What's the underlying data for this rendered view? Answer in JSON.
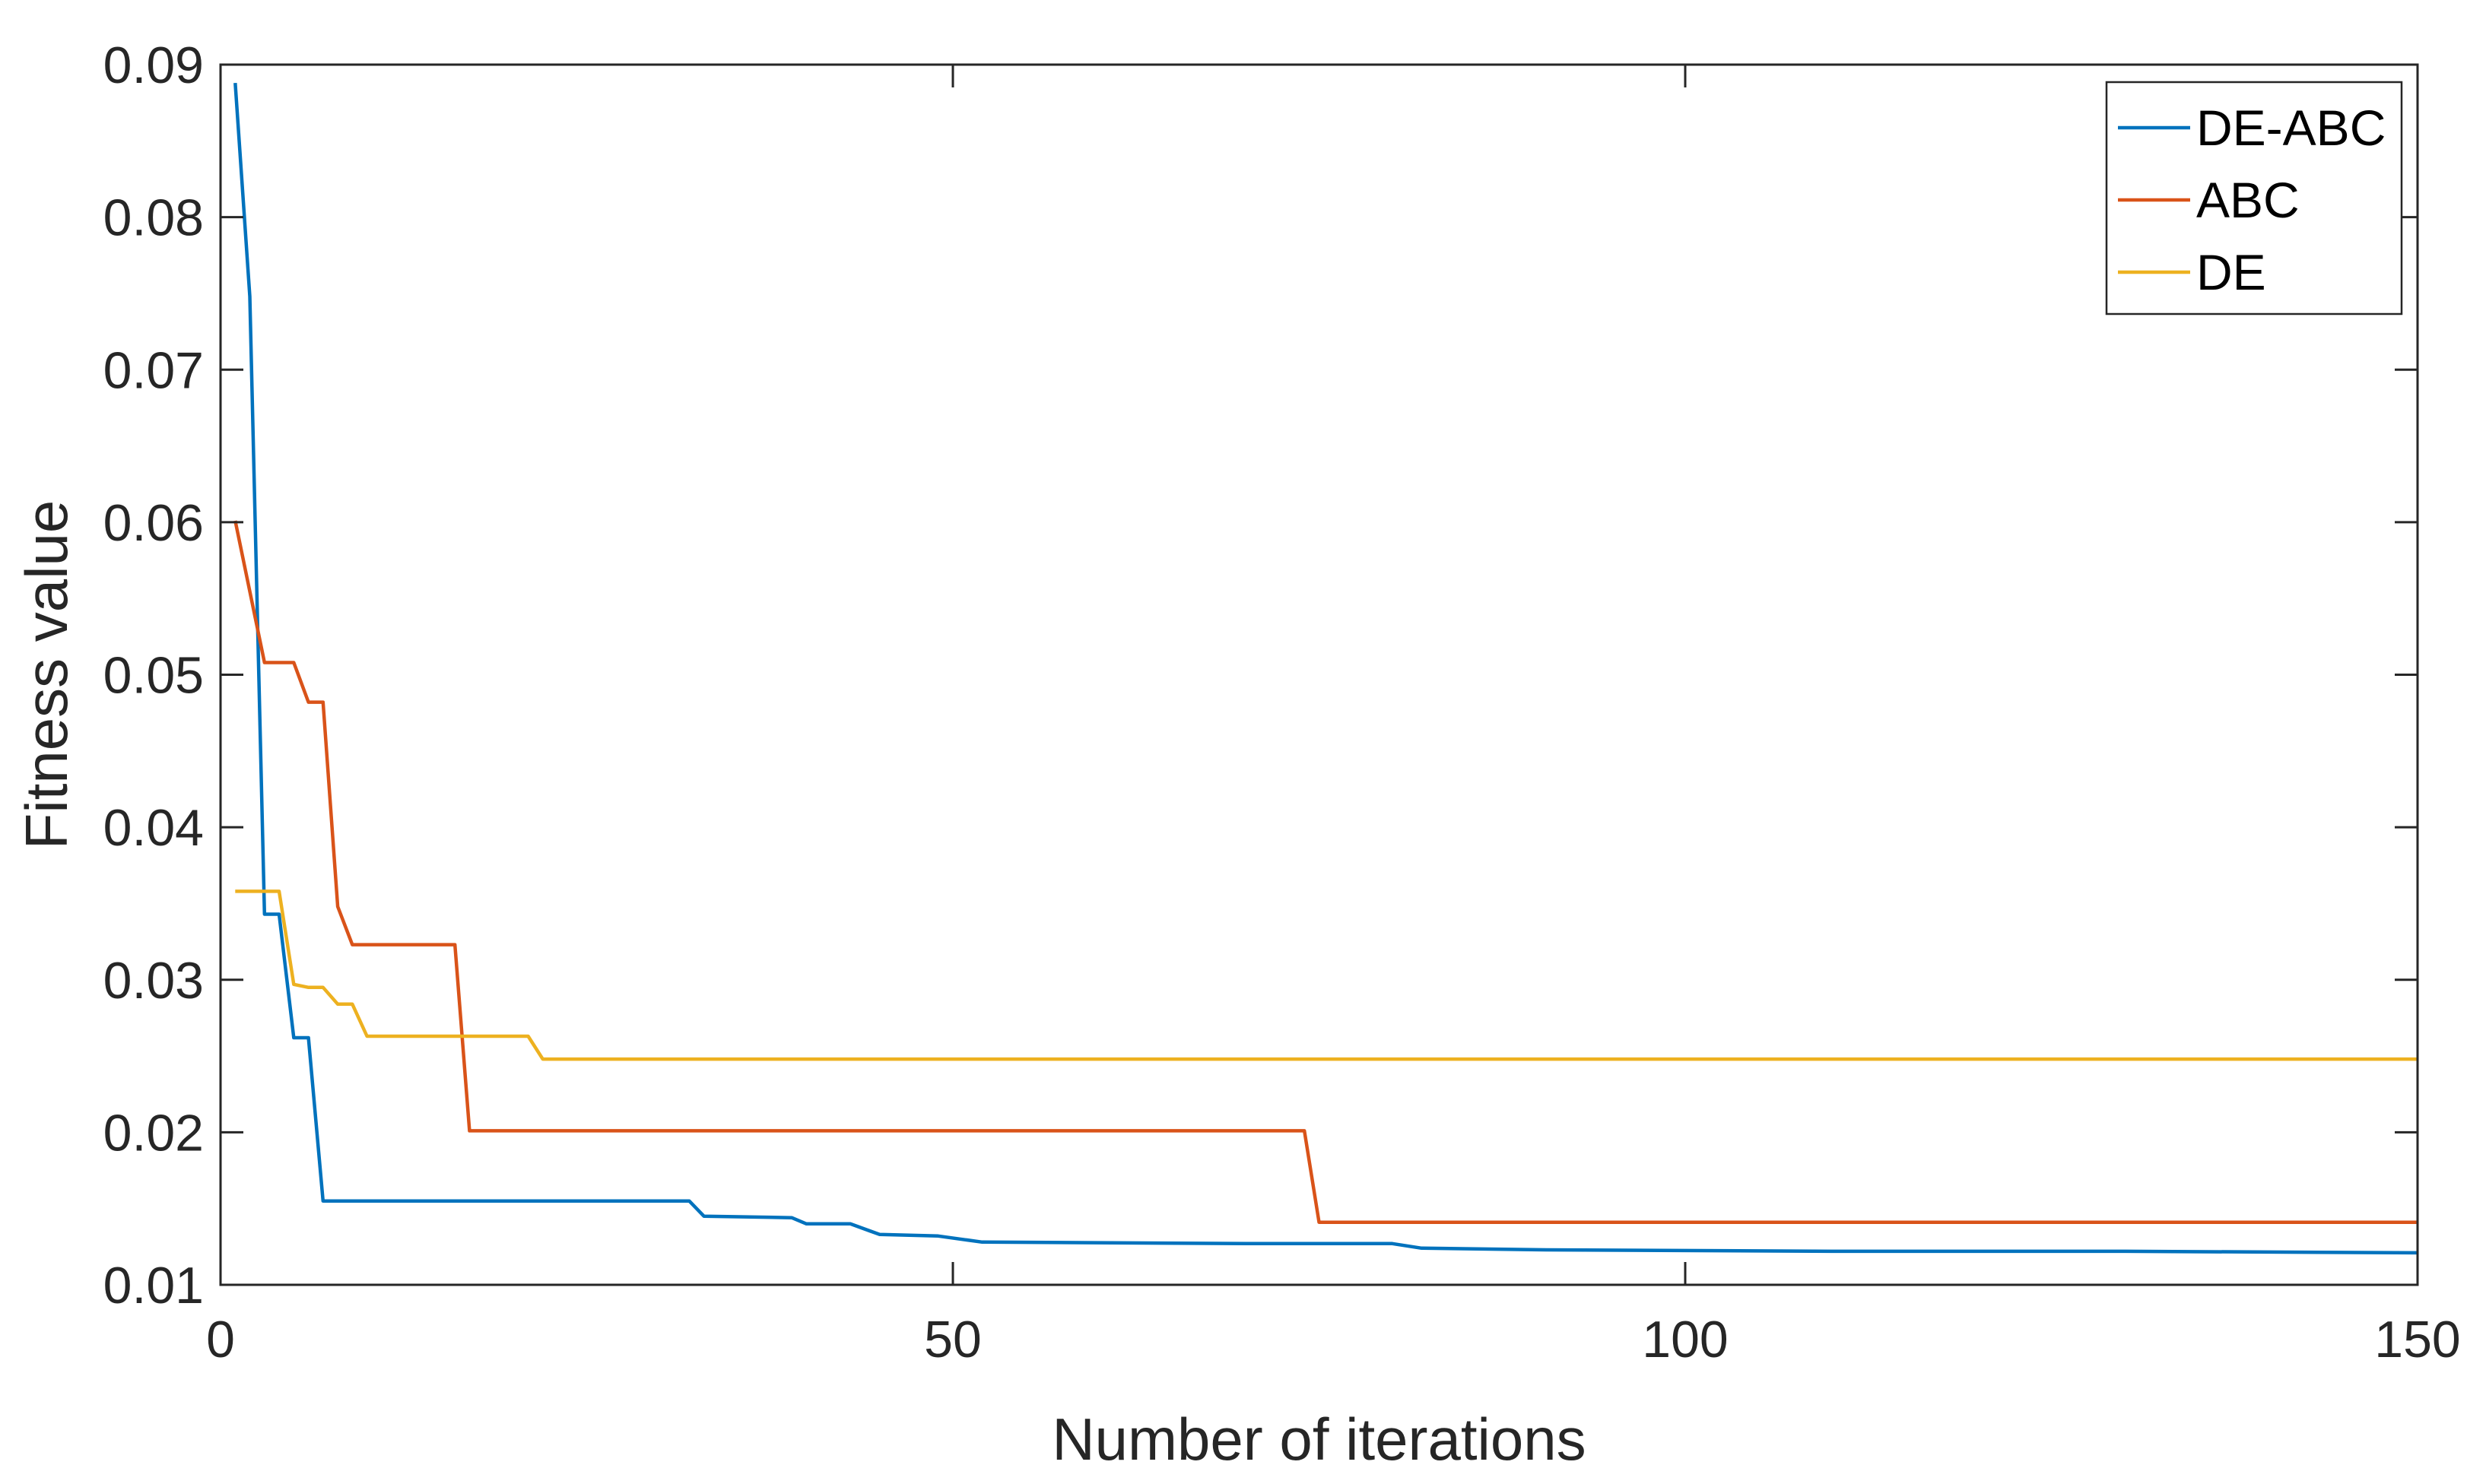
{
  "chart_data": {
    "type": "line",
    "title": "",
    "xlabel": "Number of iterations",
    "ylabel": "Fitness value",
    "xlim": [
      0,
      150
    ],
    "ylim": [
      0.01,
      0.09
    ],
    "x_ticks": [
      0,
      50,
      100,
      150
    ],
    "x_tick_labels": [
      "0",
      "50",
      "100",
      "150"
    ],
    "y_ticks": [
      0.01,
      0.02,
      0.03,
      0.04,
      0.05,
      0.06,
      0.07,
      0.08,
      0.09
    ],
    "y_tick_labels": [
      "0.01",
      "0.02",
      "0.03",
      "0.04",
      "0.05",
      "0.06",
      "0.07",
      "0.08",
      "0.09"
    ],
    "grid": false,
    "legend_position": "top-right",
    "series": [
      {
        "name": "DE-ABC",
        "color": "#0072BD",
        "points": [
          [
            1,
            0.0888
          ],
          [
            2,
            0.0748
          ],
          [
            3,
            0.0343
          ],
          [
            4,
            0.0343
          ],
          [
            5,
            0.0262
          ],
          [
            6,
            0.0262
          ],
          [
            7,
            0.0155
          ],
          [
            32,
            0.0155
          ],
          [
            33,
            0.0145
          ],
          [
            39,
            0.0144
          ],
          [
            40,
            0.014
          ],
          [
            43,
            0.014
          ],
          [
            45,
            0.0133
          ],
          [
            49,
            0.0132
          ],
          [
            52,
            0.0128
          ],
          [
            70,
            0.0127
          ],
          [
            80,
            0.0127
          ],
          [
            82,
            0.0124
          ],
          [
            90,
            0.0123
          ],
          [
            110,
            0.0122
          ],
          [
            130,
            0.0122
          ],
          [
            150,
            0.0121
          ]
        ]
      },
      {
        "name": "ABC",
        "color": "#D95319",
        "points": [
          [
            1,
            0.0601
          ],
          [
            3,
            0.0508
          ],
          [
            5,
            0.0508
          ],
          [
            6,
            0.0482
          ],
          [
            7,
            0.0482
          ],
          [
            8,
            0.0348
          ],
          [
            9,
            0.0323
          ],
          [
            16,
            0.0323
          ],
          [
            17,
            0.0201
          ],
          [
            74,
            0.0201
          ],
          [
            75,
            0.0141
          ],
          [
            150,
            0.0141
          ]
        ]
      },
      {
        "name": "DE",
        "color": "#EDB120",
        "points": [
          [
            1,
            0.0358
          ],
          [
            4,
            0.0358
          ],
          [
            5,
            0.0297
          ],
          [
            6,
            0.0295
          ],
          [
            7,
            0.0295
          ],
          [
            8,
            0.0284
          ],
          [
            9,
            0.0284
          ],
          [
            10,
            0.0263
          ],
          [
            21,
            0.0263
          ],
          [
            22,
            0.0248
          ],
          [
            150,
            0.0248
          ]
        ]
      }
    ]
  }
}
